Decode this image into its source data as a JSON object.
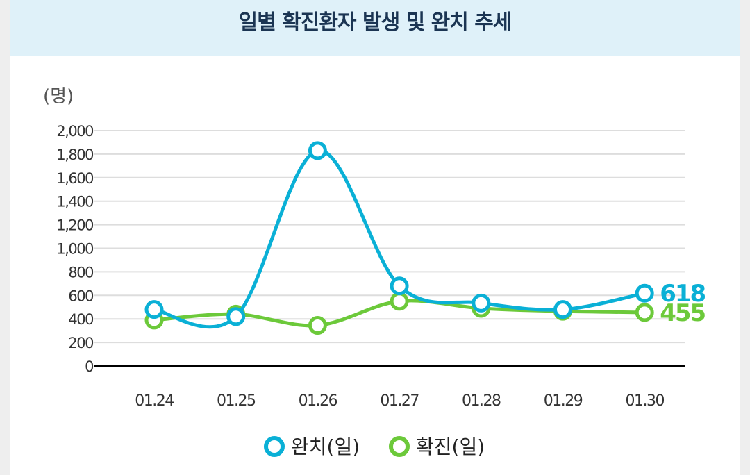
{
  "header": {
    "title": "일별 확진환자 발생 및 완치 추세"
  },
  "colors": {
    "recovered": "#0ab0d6",
    "confirmed": "#6cc93a",
    "grid": "#dddddd",
    "axis": "#000000"
  },
  "chart_data": {
    "type": "line",
    "title": "일별 확진환자 발생 및 완치 추세",
    "ylabel": "(명)",
    "xlabel": "",
    "ylim": [
      0,
      2000
    ],
    "yticks": [
      0,
      200,
      400,
      600,
      800,
      1000,
      1200,
      1400,
      1600,
      1800,
      2000
    ],
    "ytick_labels": [
      "0",
      "200",
      "400",
      "600",
      "800",
      "1,000",
      "1,200",
      "1,400",
      "1,600",
      "1,800",
      "2,000"
    ],
    "categories": [
      "01.24",
      "01.25",
      "01.26",
      "01.27",
      "01.28",
      "01.29",
      "01.30"
    ],
    "grid": true,
    "legend_position": "bottom-center",
    "series": [
      {
        "name": "완치(일)",
        "key": "recovered",
        "values": [
          480,
          420,
          1830,
          680,
          535,
          480,
          618
        ],
        "end_label": "618"
      },
      {
        "name": "확진(일)",
        "key": "confirmed",
        "values": [
          390,
          440,
          345,
          550,
          490,
          465,
          455
        ],
        "end_label": "455"
      }
    ]
  }
}
